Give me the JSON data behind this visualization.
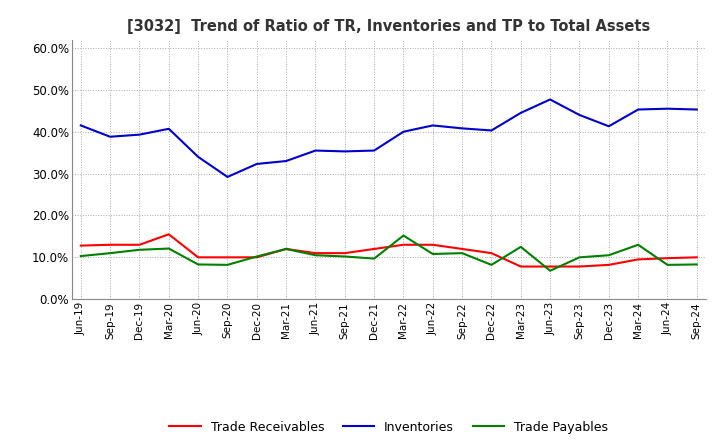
{
  "title": "[3032]  Trend of Ratio of TR, Inventories and TP to Total Assets",
  "labels": [
    "Jun-19",
    "Sep-19",
    "Dec-19",
    "Mar-20",
    "Jun-20",
    "Sep-20",
    "Dec-20",
    "Mar-21",
    "Jun-21",
    "Sep-21",
    "Dec-21",
    "Mar-22",
    "Jun-22",
    "Sep-22",
    "Dec-22",
    "Mar-23",
    "Jun-23",
    "Sep-23",
    "Dec-23",
    "Mar-24",
    "Jun-24",
    "Sep-24"
  ],
  "trade_receivables": [
    0.128,
    0.13,
    0.13,
    0.155,
    0.1,
    0.1,
    0.1,
    0.12,
    0.11,
    0.11,
    0.12,
    0.13,
    0.13,
    0.12,
    0.11,
    0.078,
    0.078,
    0.078,
    0.082,
    0.095,
    0.098,
    0.1
  ],
  "inventories": [
    0.415,
    0.388,
    0.393,
    0.407,
    0.34,
    0.292,
    0.323,
    0.33,
    0.355,
    0.353,
    0.355,
    0.4,
    0.415,
    0.408,
    0.403,
    0.445,
    0.477,
    0.44,
    0.413,
    0.453,
    0.455,
    0.453
  ],
  "trade_payables": [
    0.103,
    0.11,
    0.118,
    0.121,
    0.083,
    0.082,
    0.102,
    0.12,
    0.105,
    0.102,
    0.097,
    0.152,
    0.108,
    0.11,
    0.082,
    0.125,
    0.068,
    0.1,
    0.105,
    0.13,
    0.082,
    0.083
  ],
  "tr_color": "#ff0000",
  "inv_color": "#0000cc",
  "tp_color": "#008000",
  "ylim": [
    0.0,
    0.62
  ],
  "yticks": [
    0.0,
    0.1,
    0.2,
    0.3,
    0.4,
    0.5,
    0.6
  ],
  "bg_color": "#ffffff",
  "grid_color": "#aaaaaa",
  "legend_labels": [
    "Trade Receivables",
    "Inventories",
    "Trade Payables"
  ]
}
